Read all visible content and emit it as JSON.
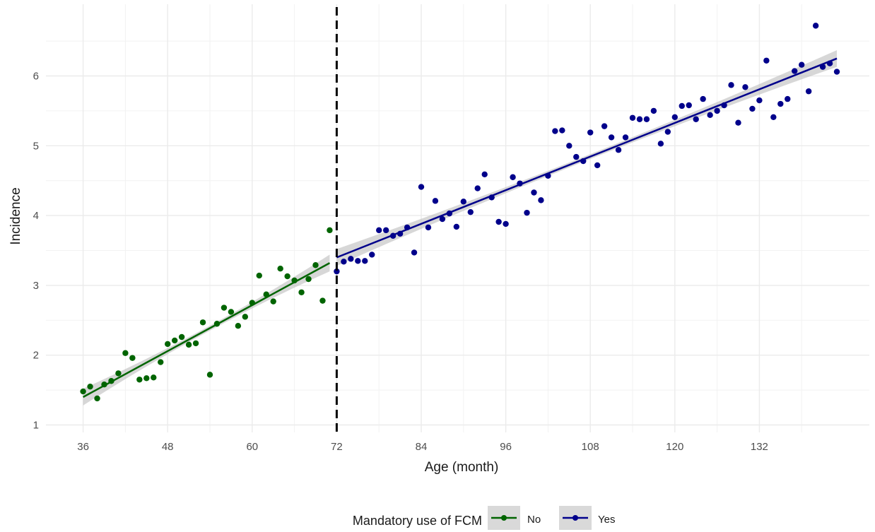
{
  "chart_data": {
    "type": "scatter",
    "xlabel": "Age (month)",
    "ylabel": "Incidence",
    "xlim": [
      36,
      144
    ],
    "ylim": [
      1,
      6.6
    ],
    "x_ticks": [
      36,
      48,
      60,
      72,
      84,
      96,
      108,
      120,
      132
    ],
    "x_tick_labels": [
      "36",
      "48",
      "60",
      "72",
      "84",
      "96",
      "108",
      "120",
      "132"
    ],
    "y_ticks": [
      1,
      2,
      3,
      4,
      5,
      6
    ],
    "y_tick_labels": [
      "1",
      "2",
      "3",
      "4",
      "5",
      "6"
    ],
    "grid": true,
    "cutoff": {
      "x": 72,
      "style": "dashed"
    },
    "legend": {
      "title": "Mandatory use of FCM",
      "position": "bottom"
    },
    "series": [
      {
        "name": "No",
        "color": "#006400",
        "x": [
          36,
          37,
          38,
          39,
          40,
          41,
          42,
          43,
          44,
          45,
          46,
          47,
          48,
          49,
          50,
          51,
          52,
          53,
          54,
          55,
          56,
          57,
          58,
          59,
          60,
          61,
          62,
          63,
          64,
          65,
          66,
          67,
          68,
          69,
          70,
          71
        ],
        "y": [
          1.48,
          1.55,
          1.38,
          1.58,
          1.63,
          1.74,
          2.03,
          1.96,
          1.65,
          1.67,
          1.68,
          1.9,
          2.16,
          2.21,
          2.26,
          2.15,
          2.17,
          2.47,
          1.72,
          2.45,
          2.68,
          2.62,
          2.42,
          2.55,
          2.75,
          3.14,
          2.87,
          2.77,
          3.24,
          3.13,
          3.07,
          2.9,
          3.09,
          3.29,
          2.78,
          3.79
        ],
        "trend": {
          "x": [
            36,
            71
          ],
          "y": [
            1.4,
            3.32
          ]
        }
      },
      {
        "name": "Yes",
        "color": "#00008B",
        "x": [
          72,
          73,
          74,
          75,
          76,
          77,
          78,
          79,
          80,
          81,
          82,
          83,
          84,
          85,
          86,
          87,
          88,
          89,
          90,
          91,
          92,
          93,
          94,
          95,
          96,
          97,
          98,
          99,
          100,
          101,
          102,
          103,
          104,
          105,
          106,
          107,
          108,
          109,
          110,
          111,
          112,
          113,
          114,
          115,
          116,
          117,
          118,
          119,
          120,
          121,
          122,
          123,
          124,
          125,
          126,
          127,
          128,
          129,
          130,
          131,
          132,
          133,
          134,
          135,
          136,
          137,
          138,
          139,
          140,
          141,
          142,
          143
        ],
        "y": [
          3.2,
          3.34,
          3.38,
          3.35,
          3.35,
          3.44,
          3.79,
          3.79,
          3.71,
          3.74,
          3.83,
          3.47,
          4.41,
          3.83,
          4.21,
          3.95,
          4.03,
          3.84,
          4.2,
          4.05,
          4.39,
          4.59,
          4.26,
          3.91,
          3.88,
          4.55,
          4.46,
          4.04,
          4.33,
          4.22,
          4.57,
          5.21,
          5.22,
          5.0,
          4.84,
          4.78,
          5.19,
          4.72,
          5.28,
          5.12,
          4.94,
          5.12,
          5.4,
          5.38,
          5.38,
          5.5,
          5.03,
          5.2,
          5.41,
          5.57,
          5.58,
          5.38,
          5.67,
          5.44,
          5.5,
          5.58,
          5.87,
          5.33,
          5.84,
          5.53,
          5.65,
          6.22,
          5.41,
          5.6,
          5.67,
          6.07,
          6.16,
          5.78,
          6.72,
          6.13,
          6.18,
          6.06
        ],
        "trend": {
          "x": [
            72,
            143
          ],
          "y": [
            3.4,
            6.25
          ]
        }
      }
    ]
  }
}
